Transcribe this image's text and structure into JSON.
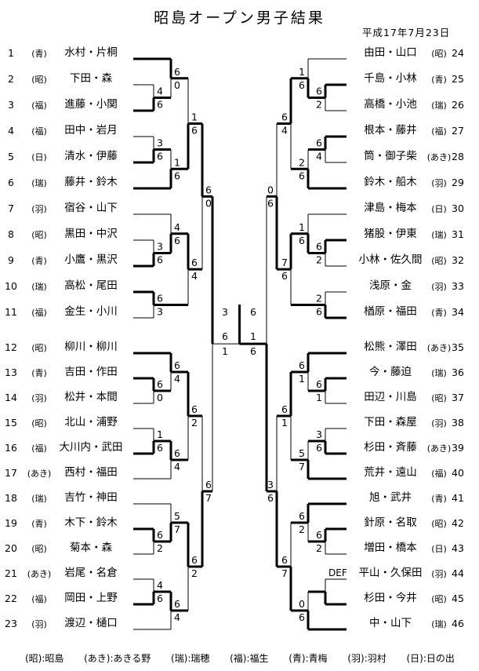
{
  "header": {
    "title": "昭島オープン男子結果",
    "date": "平成17年7月23日"
  },
  "legend": {
    "items": [
      "(昭):昭島",
      "(あき):あきる野",
      "(瑞):瑞穂",
      "(福):福生",
      "(青):青梅",
      "(羽):羽村",
      "(日):日の出"
    ]
  },
  "bracket": {
    "entries": [
      {
        "seed": "1",
        "side": "L",
        "row": 0,
        "affil": "(青)",
        "name": "水村・片桐"
      },
      {
        "seed": "2",
        "side": "L",
        "row": 1,
        "affil": "(昭)",
        "name": "下田・森"
      },
      {
        "seed": "3",
        "side": "L",
        "row": 2,
        "affil": "(福)",
        "name": "進藤・小関"
      },
      {
        "seed": "4",
        "side": "L",
        "row": 3,
        "affil": "(福)",
        "name": "田中・岩月"
      },
      {
        "seed": "5",
        "side": "L",
        "row": 4,
        "affil": "(日)",
        "name": "清水・伊藤"
      },
      {
        "seed": "6",
        "side": "L",
        "row": 5,
        "affil": "(瑞)",
        "name": "藤井・鈴木"
      },
      {
        "seed": "7",
        "side": "L",
        "row": 6,
        "affil": "(羽)",
        "name": "宿谷・山下"
      },
      {
        "seed": "8",
        "side": "L",
        "row": 7,
        "affil": "(昭)",
        "name": "黒田・中沢"
      },
      {
        "seed": "9",
        "side": "L",
        "row": 8,
        "affil": "(青)",
        "name": "小鷹・黒沢"
      },
      {
        "seed": "10",
        "side": "L",
        "row": 9,
        "affil": "(瑞)",
        "name": "高松・尾田"
      },
      {
        "seed": "11",
        "side": "L",
        "row": 10,
        "affil": "(福)",
        "name": "金生・小川"
      },
      {
        "seed": "12",
        "side": "L",
        "row": 11,
        "affil": "(昭)",
        "name": "柳川・柳川"
      },
      {
        "seed": "13",
        "side": "L",
        "row": 12,
        "affil": "(青)",
        "name": "吉田・作田"
      },
      {
        "seed": "14",
        "side": "L",
        "row": 13,
        "affil": "(羽)",
        "name": "松井・本間"
      },
      {
        "seed": "15",
        "side": "L",
        "row": 14,
        "affil": "(昭)",
        "name": "北山・浦野"
      },
      {
        "seed": "16",
        "side": "L",
        "row": 15,
        "affil": "(福)",
        "name": "大川内・武田"
      },
      {
        "seed": "17",
        "side": "L",
        "row": 16,
        "affil": "(あき)",
        "name": "西村・福田"
      },
      {
        "seed": "18",
        "side": "L",
        "row": 17,
        "affil": "(瑞)",
        "name": "吉竹・神田"
      },
      {
        "seed": "19",
        "side": "L",
        "row": 18,
        "affil": "(青)",
        "name": "木下・鈴木"
      },
      {
        "seed": "20",
        "side": "L",
        "row": 19,
        "affil": "(昭)",
        "name": "菊本・森"
      },
      {
        "seed": "21",
        "side": "L",
        "row": 20,
        "affil": "(あき)",
        "name": "岩尾・名倉"
      },
      {
        "seed": "22",
        "side": "L",
        "row": 21,
        "affil": "(福)",
        "name": "岡田・上野"
      },
      {
        "seed": "23",
        "side": "L",
        "row": 22,
        "affil": "(羽)",
        "name": "渡辺・樋口"
      },
      {
        "seed": "24",
        "side": "R",
        "row": 0,
        "affil": "(昭)",
        "name": "由田・山口"
      },
      {
        "seed": "25",
        "side": "R",
        "row": 1,
        "affil": "(青)",
        "name": "千島・小林"
      },
      {
        "seed": "26",
        "side": "R",
        "row": 2,
        "affil": "(瑞)",
        "name": "高橋・小池"
      },
      {
        "seed": "27",
        "side": "R",
        "row": 3,
        "affil": "(福)",
        "name": "根本・藤井"
      },
      {
        "seed": "28",
        "side": "R",
        "row": 4,
        "affil": "(あき)",
        "name": "筒・御子柴"
      },
      {
        "seed": "29",
        "side": "R",
        "row": 5,
        "affil": "(羽)",
        "name": "鈴木・船木"
      },
      {
        "seed": "30",
        "side": "R",
        "row": 6,
        "affil": "(日)",
        "name": "津島・梅本"
      },
      {
        "seed": "31",
        "side": "R",
        "row": 7,
        "affil": "(瑞)",
        "name": "猪股・伊東"
      },
      {
        "seed": "32",
        "side": "R",
        "row": 8,
        "affil": "(昭)",
        "name": "小林・佐久間"
      },
      {
        "seed": "33",
        "side": "R",
        "row": 9,
        "affil": "(羽)",
        "name": "浅原・金"
      },
      {
        "seed": "34",
        "side": "R",
        "row": 10,
        "affil": "(青)",
        "name": "楢原・福田"
      },
      {
        "seed": "35",
        "side": "R",
        "row": 11,
        "affil": "(あき)",
        "name": "松熊・澤田"
      },
      {
        "seed": "36",
        "side": "R",
        "row": 12,
        "affil": "(瑞)",
        "name": "今・藤迫"
      },
      {
        "seed": "37",
        "side": "R",
        "row": 13,
        "affil": "(昭)",
        "name": "田辺・川島"
      },
      {
        "seed": "38",
        "side": "R",
        "row": 14,
        "affil": "(羽)",
        "name": "下田・森屋"
      },
      {
        "seed": "39",
        "side": "R",
        "row": 15,
        "affil": "(あき)",
        "name": "杉田・斉藤"
      },
      {
        "seed": "40",
        "side": "R",
        "row": 16,
        "affil": "(福)",
        "name": "荒井・遠山"
      },
      {
        "seed": "41",
        "side": "R",
        "row": 17,
        "affil": "(青)",
        "name": "旭・武井"
      },
      {
        "seed": "42",
        "side": "R",
        "row": 18,
        "affil": "(昭)",
        "name": "針原・名取"
      },
      {
        "seed": "43",
        "side": "R",
        "row": 19,
        "affil": "(日)",
        "name": "増田・橋本"
      },
      {
        "seed": "44",
        "side": "R",
        "row": 20,
        "affil": "(羽)",
        "name": "平山・久保田"
      },
      {
        "seed": "45",
        "side": "R",
        "row": 21,
        "affil": "(昭)",
        "name": "杉田・今井"
      },
      {
        "seed": "46",
        "side": "R",
        "row": 22,
        "affil": "(瑞)",
        "name": "中・山下"
      }
    ],
    "matches": [
      {
        "id": "m1",
        "side": "L",
        "col": 1,
        "top": "e2",
        "bottom": "e3",
        "st": "4",
        "sb": "6",
        "winner": "bottom"
      },
      {
        "id": "m2",
        "side": "L",
        "col": 2,
        "top": "e1",
        "bottom": "m1",
        "st": "6",
        "sb": "0",
        "winner": "top"
      },
      {
        "id": "m3",
        "side": "L",
        "col": 1,
        "top": "e4",
        "bottom": "e5",
        "st": "3",
        "sb": "6",
        "winner": "bottom"
      },
      {
        "id": "m4",
        "side": "L",
        "col": 2,
        "top": "m3",
        "bottom": "e6",
        "st": "1",
        "sb": "6",
        "winner": "bottom"
      },
      {
        "id": "m5",
        "side": "L",
        "col": 3,
        "top": "m2",
        "bottom": "m4",
        "st": "1",
        "sb": "6",
        "winner": "bottom"
      },
      {
        "id": "m6",
        "side": "L",
        "col": 1,
        "top": "e8",
        "bottom": "e9",
        "st": "3",
        "sb": "6",
        "winner": "bottom"
      },
      {
        "id": "m7",
        "side": "L",
        "col": 2,
        "top": "e7",
        "bottom": "m6",
        "st": "4",
        "sb": "6",
        "winner": "bottom"
      },
      {
        "id": "m8",
        "side": "L",
        "col": 1,
        "top": "e10",
        "bottom": "e11",
        "st": "6",
        "sb": "3",
        "winner": "top"
      },
      {
        "id": "m9",
        "side": "L",
        "col": 3,
        "top": "m7",
        "bottom": "m8",
        "st": "6",
        "sb": "4",
        "winner": "top"
      },
      {
        "id": "m10",
        "side": "L",
        "col": 4,
        "top": "m5",
        "bottom": "m9",
        "st": "6",
        "sb": "0",
        "winner": "top"
      },
      {
        "id": "m11",
        "side": "L",
        "col": 1,
        "top": "e13",
        "bottom": "e14",
        "st": "6",
        "sb": "0",
        "winner": "top"
      },
      {
        "id": "m12",
        "side": "L",
        "col": 2,
        "top": "e12",
        "bottom": "m11",
        "st": "6",
        "sb": "4",
        "winner": "top"
      },
      {
        "id": "m13",
        "side": "L",
        "col": 1,
        "top": "e15",
        "bottom": "e16",
        "st": "1",
        "sb": "6",
        "winner": "bottom"
      },
      {
        "id": "m14",
        "side": "L",
        "col": 2,
        "top": "m13",
        "bottom": "e17",
        "st": "6",
        "sb": "4",
        "winner": "top"
      },
      {
        "id": "m15",
        "side": "L",
        "col": 3,
        "top": "m12",
        "bottom": "m14",
        "st": "6",
        "sb": "2",
        "winner": "top"
      },
      {
        "id": "m16",
        "side": "L",
        "col": 1,
        "top": "e19",
        "bottom": "e20",
        "st": "6",
        "sb": "2",
        "winner": "top"
      },
      {
        "id": "m17",
        "side": "L",
        "col": 2,
        "top": "e18",
        "bottom": "m16",
        "st": "5",
        "sb": "7",
        "winner": "bottom"
      },
      {
        "id": "m18",
        "side": "L",
        "col": 1,
        "top": "e21",
        "bottom": "e22",
        "st": "4",
        "sb": "6",
        "winner": "bottom"
      },
      {
        "id": "m19",
        "side": "L",
        "col": 2,
        "top": "m18",
        "bottom": "e23",
        "st": "6",
        "sb": "4",
        "winner": "top"
      },
      {
        "id": "m20",
        "side": "L",
        "col": 3,
        "top": "m17",
        "bottom": "m19",
        "st": "6",
        "sb": "2",
        "winner": "top"
      },
      {
        "id": "m21",
        "side": "L",
        "col": 4,
        "top": "m15",
        "bottom": "m20",
        "st": "6",
        "sb": "7",
        "winner": "bottom"
      },
      {
        "id": "m22",
        "side": "L",
        "col": 5,
        "top": "m10",
        "bottom": "m21",
        "st": "6",
        "sb": "1",
        "winner": "top",
        "exit_bold": false
      },
      {
        "id": "m23",
        "side": "R",
        "col": 1,
        "top": "e25",
        "bottom": "e26",
        "st": "6",
        "sb": "2",
        "winner": "top"
      },
      {
        "id": "m24",
        "side": "R",
        "col": 2,
        "top": "e24",
        "bottom": "m23",
        "st": "1",
        "sb": "6",
        "winner": "bottom"
      },
      {
        "id": "m25",
        "side": "R",
        "col": 1,
        "top": "e27",
        "bottom": "e28",
        "st": "6",
        "sb": "4",
        "winner": "top"
      },
      {
        "id": "m26",
        "side": "R",
        "col": 2,
        "top": "m25",
        "bottom": "e29",
        "st": "2",
        "sb": "6",
        "winner": "bottom"
      },
      {
        "id": "m27",
        "side": "R",
        "col": 3,
        "top": "m24",
        "bottom": "m26",
        "st": "6",
        "sb": "4",
        "winner": "top"
      },
      {
        "id": "m28",
        "side": "R",
        "col": 1,
        "top": "e31",
        "bottom": "e32",
        "st": "6",
        "sb": "2",
        "winner": "top"
      },
      {
        "id": "m29",
        "side": "R",
        "col": 2,
        "top": "e30",
        "bottom": "m28",
        "st": "1",
        "sb": "6",
        "winner": "bottom"
      },
      {
        "id": "m30",
        "side": "R",
        "col": 1,
        "top": "e33",
        "bottom": "e34",
        "st": "2",
        "sb": "6",
        "winner": "bottom"
      },
      {
        "id": "m31",
        "side": "R",
        "col": 3,
        "top": "m29",
        "bottom": "m30",
        "st": "7",
        "sb": "6",
        "winner": "top"
      },
      {
        "id": "m32",
        "side": "R",
        "col": 4,
        "top": "m27",
        "bottom": "m31",
        "st": "0",
        "sb": "6",
        "winner": "bottom"
      },
      {
        "id": "m33",
        "side": "R",
        "col": 1,
        "top": "e36",
        "bottom": "e37",
        "st": "6",
        "sb": "1",
        "winner": "top"
      },
      {
        "id": "m34",
        "side": "R",
        "col": 2,
        "top": "e35",
        "bottom": "m33",
        "st": "6",
        "sb": "1",
        "winner": "top"
      },
      {
        "id": "m35",
        "side": "R",
        "col": 1,
        "top": "e38",
        "bottom": "e39",
        "st": "3",
        "sb": "6",
        "winner": "bottom"
      },
      {
        "id": "m36",
        "side": "R",
        "col": 2,
        "top": "m35",
        "bottom": "e40",
        "st": "5",
        "sb": "7",
        "winner": "bottom"
      },
      {
        "id": "m37",
        "side": "R",
        "col": 3,
        "top": "m34",
        "bottom": "m36",
        "st": "6",
        "sb": "1",
        "winner": "top"
      },
      {
        "id": "m38",
        "side": "R",
        "col": 1,
        "top": "e42",
        "bottom": "e43",
        "st": "6",
        "sb": "2",
        "winner": "top"
      },
      {
        "id": "m39",
        "side": "R",
        "col": 2,
        "top": "e41",
        "bottom": "m38",
        "st": "6",
        "sb": "2",
        "winner": "top"
      },
      {
        "id": "m40",
        "side": "R",
        "col": 1,
        "top": "e44",
        "bottom": "e45",
        "st": "DEF",
        "sb": "",
        "winner": "bottom"
      },
      {
        "id": "m41",
        "side": "R",
        "col": 2,
        "top": "m40",
        "bottom": "e46",
        "st": "0",
        "sb": "6",
        "winner": "bottom"
      },
      {
        "id": "m42",
        "side": "R",
        "col": 3,
        "top": "m39",
        "bottom": "m41",
        "st": "6",
        "sb": "7",
        "winner": "bottom"
      },
      {
        "id": "m43",
        "side": "R",
        "col": 4,
        "top": "m37",
        "bottom": "m42",
        "st": "3",
        "sb": "6",
        "winner": "bottom"
      },
      {
        "id": "m44",
        "side": "R",
        "col": 5,
        "top": "m32",
        "bottom": "m43",
        "st": "1",
        "sb": "6",
        "winner": "bottom"
      }
    ],
    "final": {
      "left_score": "3",
      "right_score": "6",
      "winner": "right"
    }
  }
}
